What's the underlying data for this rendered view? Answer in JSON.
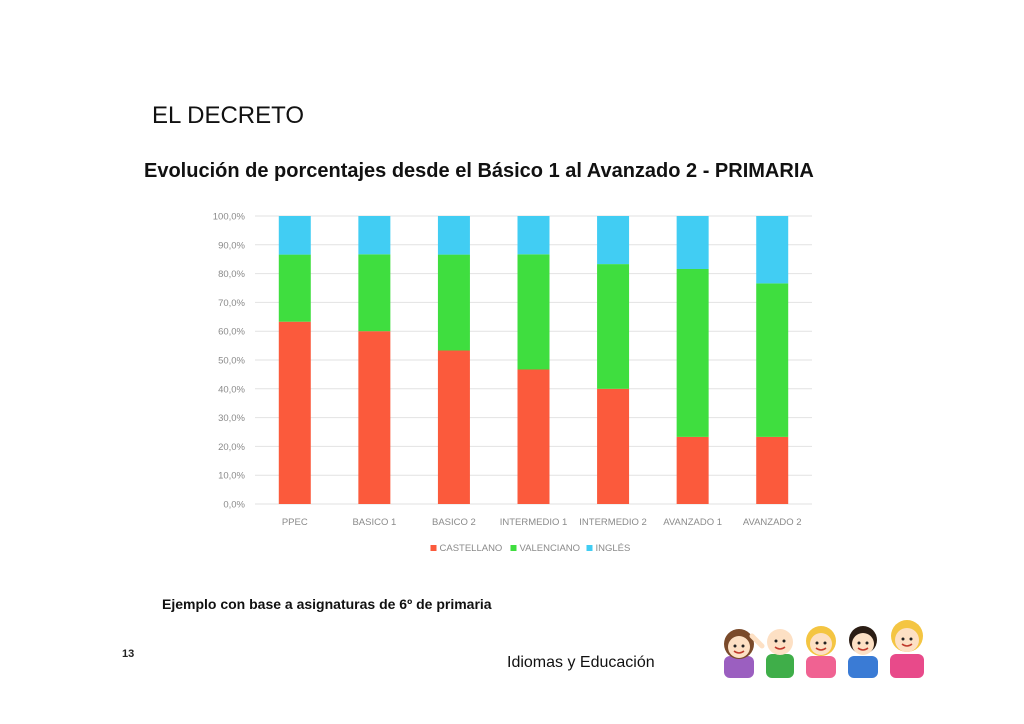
{
  "slide": {
    "heading": "EL DECRETO",
    "caption": "Ejemplo con base a asignaturas de 6º de primaria",
    "page_number": "13",
    "footer_text": "Idiomas y Educación"
  },
  "colors": {
    "castellano": "#fb5a3c",
    "valenciano": "#3fde3f",
    "ingles": "#41cdf3",
    "grid": "#e2e2e2",
    "tick_text": "#8a8a8a"
  },
  "chart_data": {
    "type": "bar",
    "stacked": true,
    "title": "Evolución de porcentajes desde el Básico 1 al Avanzado 2 - PRIMARIA",
    "categories": [
      "PPEC",
      "BASICO 1",
      "BASICO 2",
      "INTERMEDIO 1",
      "INTERMEDIO 2",
      "AVANZADO 1",
      "AVANZADO 2"
    ],
    "series": [
      {
        "name": "CASTELLANO",
        "color_key": "castellano",
        "values": [
          63.3,
          60.0,
          53.3,
          46.7,
          40.0,
          23.3,
          23.3
        ]
      },
      {
        "name": "VALENCIANO",
        "color_key": "valenciano",
        "values": [
          23.3,
          26.7,
          33.3,
          40.0,
          43.3,
          58.3,
          53.3
        ]
      },
      {
        "name": "INGLÉS",
        "color_key": "ingles",
        "values": [
          13.4,
          13.3,
          13.4,
          13.3,
          16.7,
          18.4,
          23.4
        ]
      }
    ],
    "y_ticks": [
      "0,0%",
      "10,0%",
      "20,0%",
      "30,0%",
      "40,0%",
      "50,0%",
      "60,0%",
      "70,0%",
      "80,0%",
      "90,0%",
      "100,0%"
    ],
    "ylim": [
      0,
      100
    ],
    "grid": true,
    "legend_position": "bottom",
    "xlabel": "",
    "ylabel": ""
  }
}
